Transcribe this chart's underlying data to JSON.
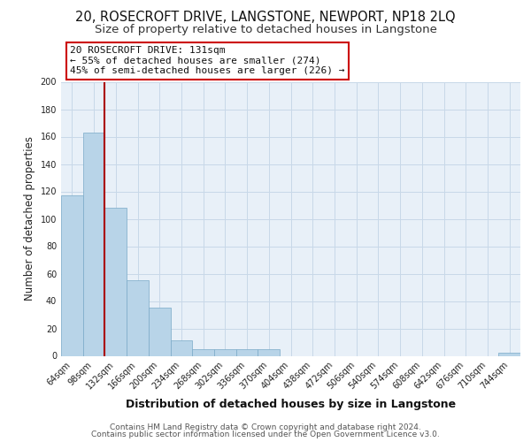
{
  "title1": "20, ROSECROFT DRIVE, LANGSTONE, NEWPORT, NP18 2LQ",
  "title2": "Size of property relative to detached houses in Langstone",
  "xlabel": "Distribution of detached houses by size in Langstone",
  "ylabel": "Number of detached properties",
  "bin_labels": [
    "64sqm",
    "98sqm",
    "132sqm",
    "166sqm",
    "200sqm",
    "234sqm",
    "268sqm",
    "302sqm",
    "336sqm",
    "370sqm",
    "404sqm",
    "438sqm",
    "472sqm",
    "506sqm",
    "540sqm",
    "574sqm",
    "608sqm",
    "642sqm",
    "676sqm",
    "710sqm",
    "744sqm"
  ],
  "bar_heights": [
    117,
    163,
    108,
    55,
    35,
    11,
    5,
    5,
    5,
    5,
    0,
    0,
    0,
    0,
    0,
    0,
    0,
    0,
    0,
    0,
    2
  ],
  "bar_color": "#b8d4e8",
  "bar_edgecolor": "#7aaac8",
  "vline_color": "#aa0000",
  "annotation_box_text": "20 ROSECROFT DRIVE: 131sqm\n← 55% of detached houses are smaller (274)\n45% of semi-detached houses are larger (226) →",
  "annotation_box_edgecolor": "#cc0000",
  "annotation_box_facecolor": "#ffffff",
  "ylim": [
    0,
    200
  ],
  "yticks": [
    0,
    20,
    40,
    60,
    80,
    100,
    120,
    140,
    160,
    180,
    200
  ],
  "footer_line1": "Contains HM Land Registry data © Crown copyright and database right 2024.",
  "footer_line2": "Contains public sector information licensed under the Open Government Licence v3.0.",
  "bg_color": "#ffffff",
  "plot_bg_color": "#e8f0f8",
  "grid_color": "#c8d8e8",
  "title1_fontsize": 10.5,
  "title2_fontsize": 9.5,
  "xlabel_fontsize": 9,
  "ylabel_fontsize": 8.5,
  "tick_fontsize": 7,
  "annotation_fontsize": 8,
  "footer_fontsize": 6.5
}
